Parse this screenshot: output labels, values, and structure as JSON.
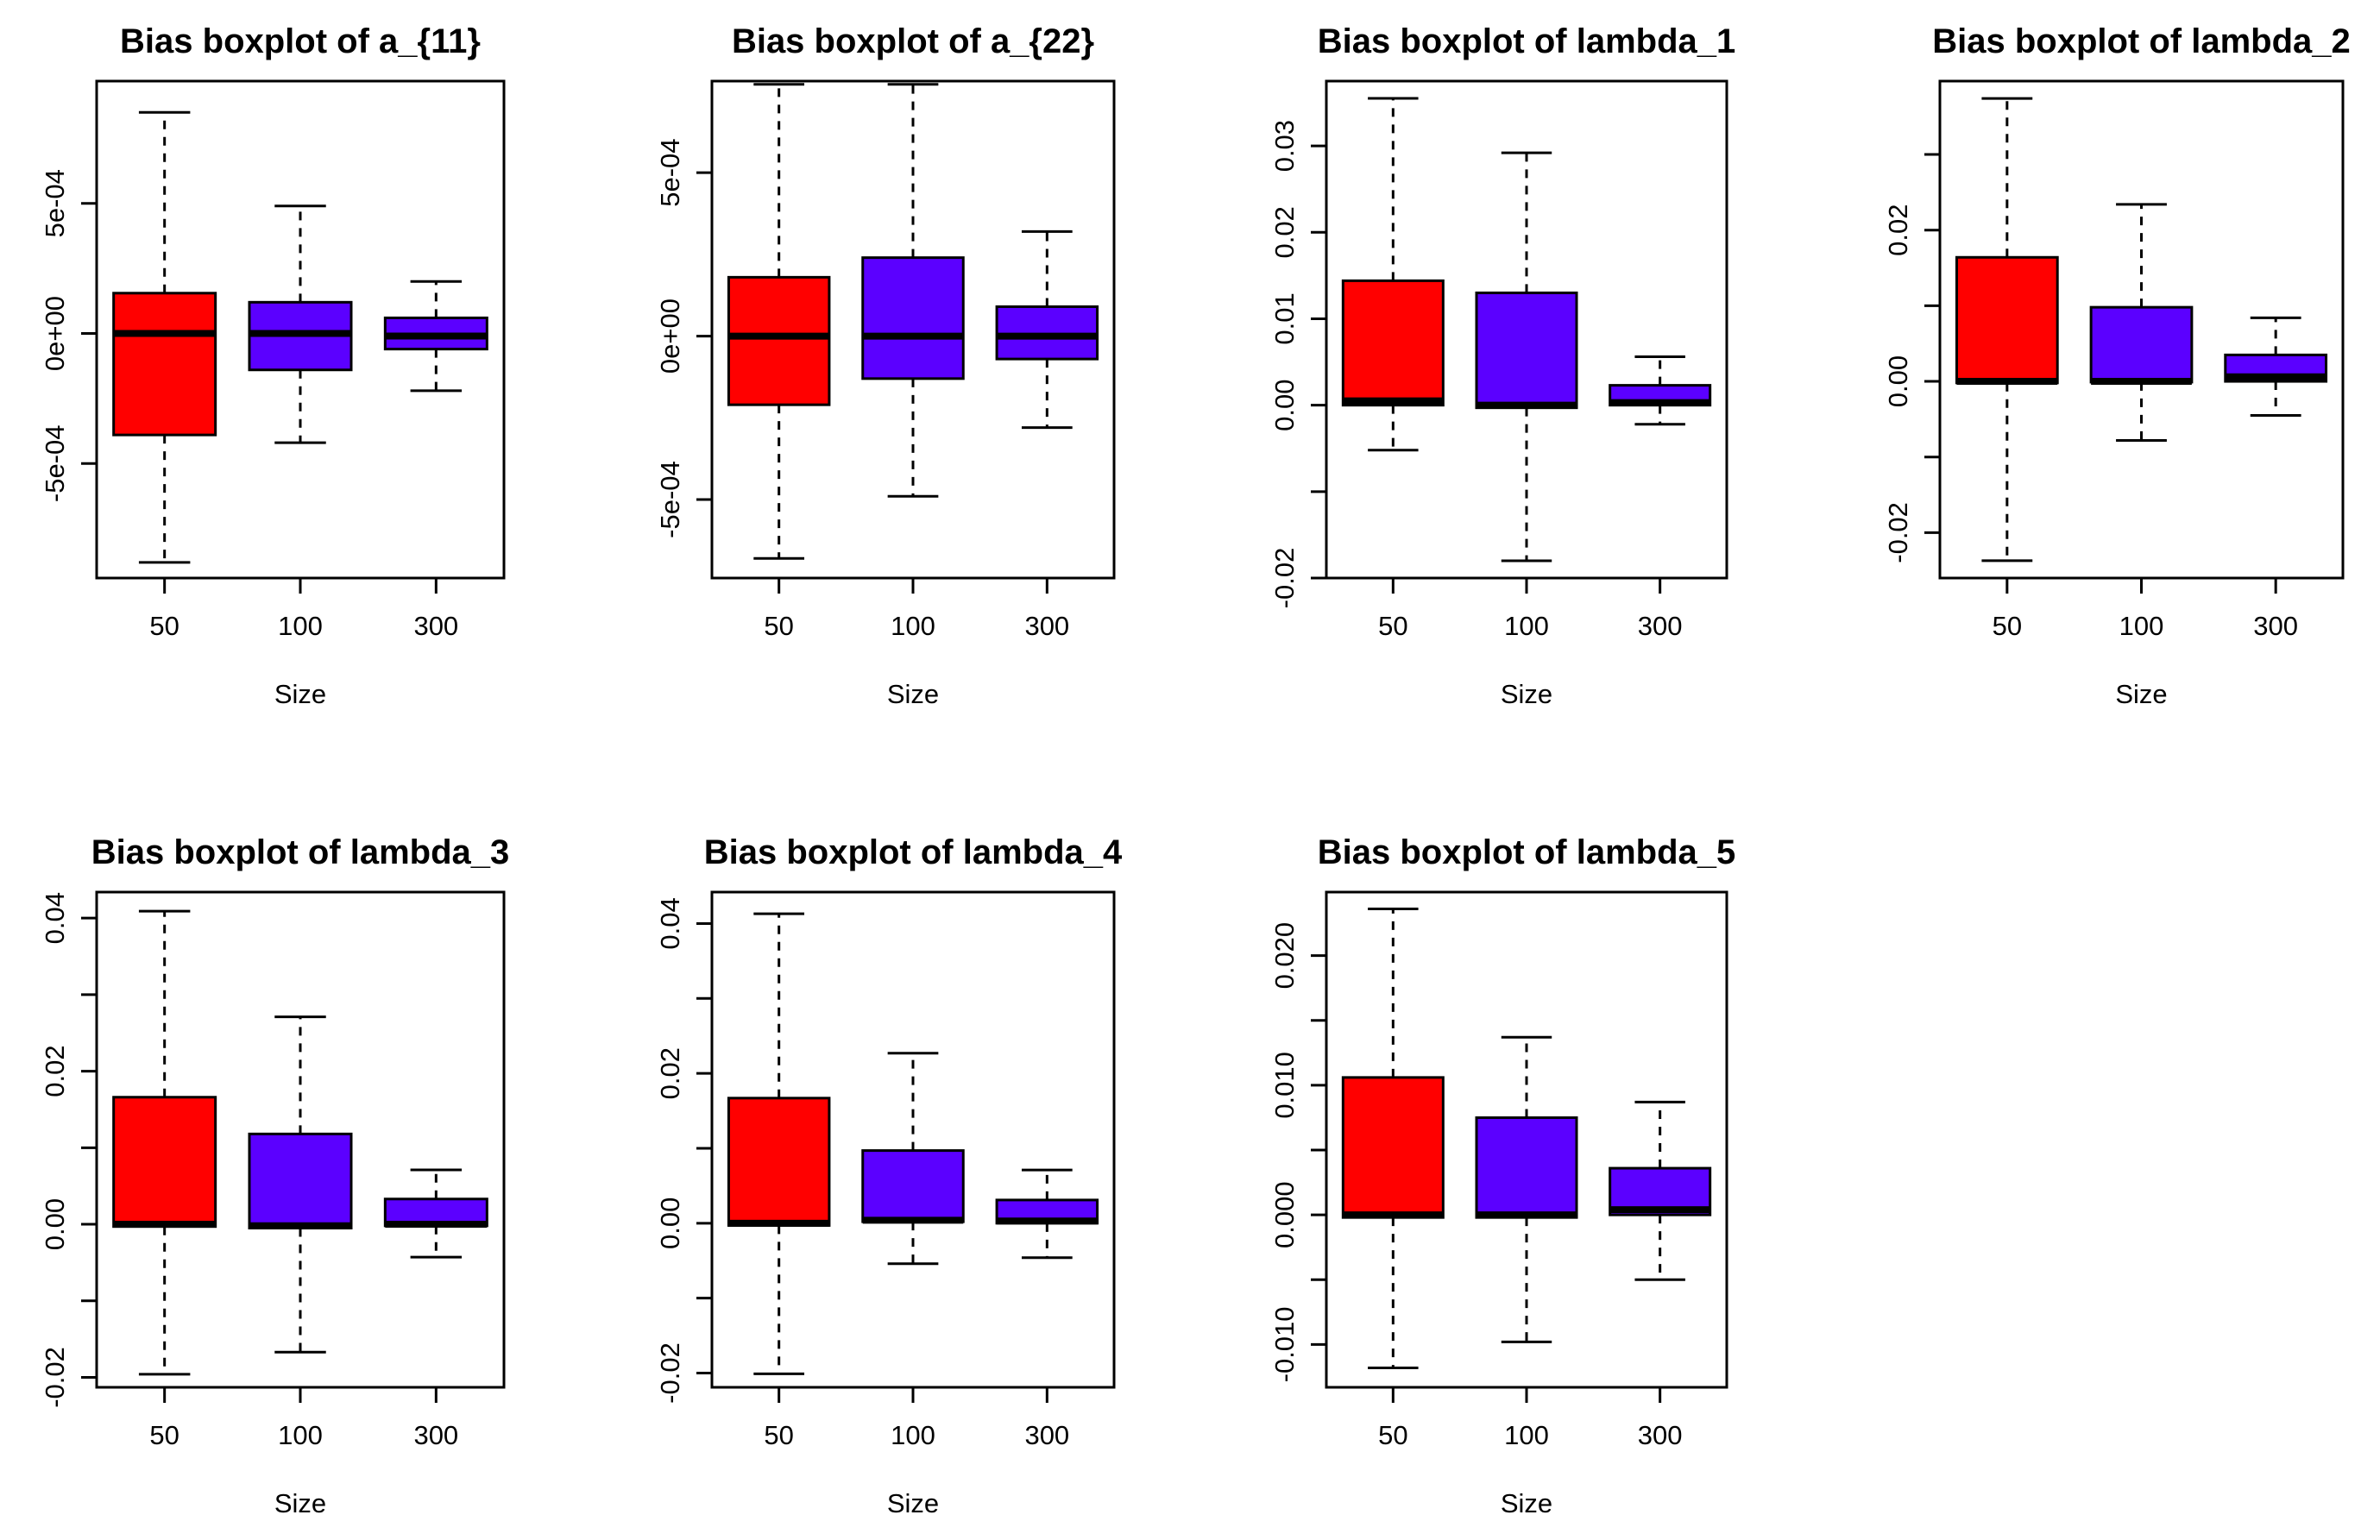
{
  "colors": {
    "box_50": "#ff0000",
    "box_other": "#5b00ff",
    "stroke": "#000000"
  },
  "chart_data": [
    {
      "type": "boxplot",
      "title": "Bias boxplot of a_{11}",
      "xlabel": "Size",
      "ylabel": "",
      "categories": [
        "50",
        "100",
        "300"
      ],
      "ylim": [
        -0.00094,
        0.00097
      ],
      "yticks": [
        -0.0005,
        0.0,
        0.0005
      ],
      "ytick_labels": [
        "-5e-04",
        "0e+00",
        "5e-04"
      ],
      "boxes": [
        {
          "min": -0.00088,
          "q1": -0.00039,
          "median": 0.0,
          "q3": 0.000155,
          "max": 0.00085
        },
        {
          "min": -0.00042,
          "q1": -0.00014,
          "median": 0.0,
          "q3": 0.00012,
          "max": 0.00049
        },
        {
          "min": -0.00022,
          "q1": -6e-05,
          "median": -1e-05,
          "q3": 6e-05,
          "max": 0.0002
        }
      ]
    },
    {
      "type": "boxplot",
      "title": "Bias boxplot of a_{22}",
      "xlabel": "Size",
      "ylabel": "",
      "categories": [
        "50",
        "100",
        "300"
      ],
      "ylim": [
        -0.00074,
        0.00078
      ],
      "yticks": [
        -0.0005,
        0.0,
        0.0005
      ],
      "ytick_labels": [
        "-5e-04",
        "0e+00",
        "5e-04"
      ],
      "boxes": [
        {
          "min": -0.00068,
          "q1": -0.00021,
          "median": 0.0,
          "q3": 0.00018,
          "max": 0.00077
        },
        {
          "min": -0.00049,
          "q1": -0.00013,
          "median": 0.0,
          "q3": 0.00024,
          "max": 0.00077
        },
        {
          "min": -0.00028,
          "q1": -7e-05,
          "median": 0.0,
          "q3": 9e-05,
          "max": 0.00032
        }
      ]
    },
    {
      "type": "boxplot",
      "title": "Bias boxplot of lambda_1",
      "xlabel": "Size",
      "ylabel": "",
      "categories": [
        "50",
        "100",
        "300"
      ],
      "ylim": [
        -0.02,
        0.0375
      ],
      "yticks": [
        -0.02,
        -0.01,
        0.0,
        0.01,
        0.02,
        0.03
      ],
      "ytick_labels": [
        "-0.02",
        "",
        "0.00",
        "0.01",
        "0.02",
        "0.03"
      ],
      "boxes": [
        {
          "min": -0.0052,
          "q1": 0.0,
          "median": 0.0005,
          "q3": 0.0144,
          "max": 0.0355
        },
        {
          "min": -0.018,
          "q1": -0.0003,
          "median": 0.0,
          "q3": 0.013,
          "max": 0.0292
        },
        {
          "min": -0.0022,
          "q1": 0.0,
          "median": 0.0003,
          "q3": 0.0023,
          "max": 0.0056
        }
      ]
    },
    {
      "type": "boxplot",
      "title": "Bias boxplot of lambda_2",
      "xlabel": "Size",
      "ylabel": "",
      "categories": [
        "50",
        "100",
        "300"
      ],
      "ylim": [
        -0.026,
        0.0397
      ],
      "yticks": [
        -0.02,
        -0.01,
        0.0,
        0.01,
        0.02,
        0.03
      ],
      "ytick_labels": [
        "-0.02",
        "",
        "0.00",
        "",
        "0.02",
        ""
      ],
      "boxes": [
        {
          "min": -0.0237,
          "q1": -0.0002,
          "median": 0.0,
          "q3": 0.0164,
          "max": 0.0374
        },
        {
          "min": -0.0078,
          "q1": -0.0001,
          "median": 0.0,
          "q3": 0.0098,
          "max": 0.0234
        },
        {
          "min": -0.0045,
          "q1": 0.0,
          "median": 0.0006,
          "q3": 0.0035,
          "max": 0.0084
        }
      ]
    },
    {
      "type": "boxplot",
      "title": "Bias boxplot of lambda_3",
      "xlabel": "Size",
      "ylabel": "",
      "categories": [
        "50",
        "100",
        "300"
      ],
      "ylim": [
        -0.0213,
        0.0434
      ],
      "yticks": [
        -0.02,
        -0.01,
        0.0,
        0.01,
        0.02,
        0.03,
        0.04
      ],
      "ytick_labels": [
        "-0.02",
        "",
        "0.00",
        "",
        "0.02",
        "",
        "0.04"
      ],
      "boxes": [
        {
          "min": -0.0196,
          "q1": -0.0003,
          "median": 0.0,
          "q3": 0.0166,
          "max": 0.0409
        },
        {
          "min": -0.0167,
          "q1": -0.0005,
          "median": -0.0002,
          "q3": 0.0118,
          "max": 0.0271
        },
        {
          "min": -0.0043,
          "q1": -0.0002,
          "median": 0.0,
          "q3": 0.0033,
          "max": 0.0071
        }
      ]
    },
    {
      "type": "boxplot",
      "title": "Bias boxplot of lambda_4",
      "xlabel": "Size",
      "ylabel": "",
      "categories": [
        "50",
        "100",
        "300"
      ],
      "ylim": [
        -0.0219,
        0.0442
      ],
      "yticks": [
        -0.02,
        -0.01,
        0.0,
        0.01,
        0.02,
        0.03,
        0.04
      ],
      "ytick_labels": [
        "-0.02",
        "",
        "0.00",
        "",
        "0.02",
        "",
        "0.04"
      ],
      "boxes": [
        {
          "min": -0.0201,
          "q1": -0.0003,
          "median": 0.0,
          "q3": 0.0167,
          "max": 0.0413
        },
        {
          "min": -0.0054,
          "q1": 0.0002,
          "median": 0.0004,
          "q3": 0.0097,
          "max": 0.0227
        },
        {
          "min": -0.0046,
          "q1": 0.0,
          "median": 0.0003,
          "q3": 0.0031,
          "max": 0.0071
        }
      ]
    },
    {
      "type": "boxplot",
      "title": "Bias boxplot of lambda_5",
      "xlabel": "Size",
      "ylabel": "",
      "categories": [
        "50",
        "100",
        "300"
      ],
      "ylim": [
        -0.0133,
        0.0249
      ],
      "yticks": [
        -0.01,
        -0.005,
        0.0,
        0.005,
        0.01,
        0.015,
        0.02
      ],
      "ytick_labels": [
        "-0.010",
        "",
        "0.000",
        "",
        "0.010",
        "",
        "0.020"
      ],
      "boxes": [
        {
          "min": -0.0118,
          "q1": -0.0002,
          "median": 0.0,
          "q3": 0.0106,
          "max": 0.0236
        },
        {
          "min": -0.0098,
          "q1": -0.0002,
          "median": 0.0,
          "q3": 0.0075,
          "max": 0.0137
        },
        {
          "min": -0.005,
          "q1": 0.0,
          "median": 0.0004,
          "q3": 0.0036,
          "max": 0.0087
        }
      ]
    }
  ]
}
